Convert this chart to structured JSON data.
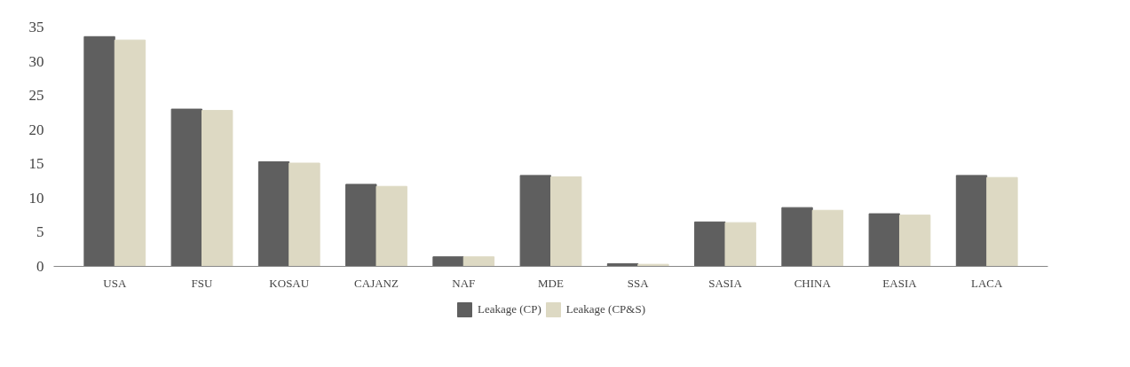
{
  "chart_data": {
    "type": "bar",
    "categories": [
      "USA",
      "FSU",
      "KOSAU",
      "CAJANZ",
      "NAF",
      "MDE",
      "SSA",
      "SASIA",
      "CHINA",
      "EASIA",
      "LACA"
    ],
    "series": [
      {
        "name": "Leakage (CP)",
        "color": "#5f5f5f",
        "values": [
          33.6,
          23.0,
          15.3,
          12.0,
          1.4,
          13.3,
          0.4,
          6.5,
          8.6,
          7.7,
          13.3
        ]
      },
      {
        "name": "Leakage (CP&S)",
        "color": "#ddd9c3",
        "values": [
          33.1,
          22.8,
          15.1,
          11.7,
          1.4,
          13.1,
          0.3,
          6.4,
          8.2,
          7.5,
          13.0
        ]
      }
    ],
    "ylim": [
      0,
      35
    ],
    "yticks": [
      0,
      5,
      10,
      15,
      20,
      25,
      30,
      35
    ],
    "grid": false,
    "legend": "bottom"
  }
}
